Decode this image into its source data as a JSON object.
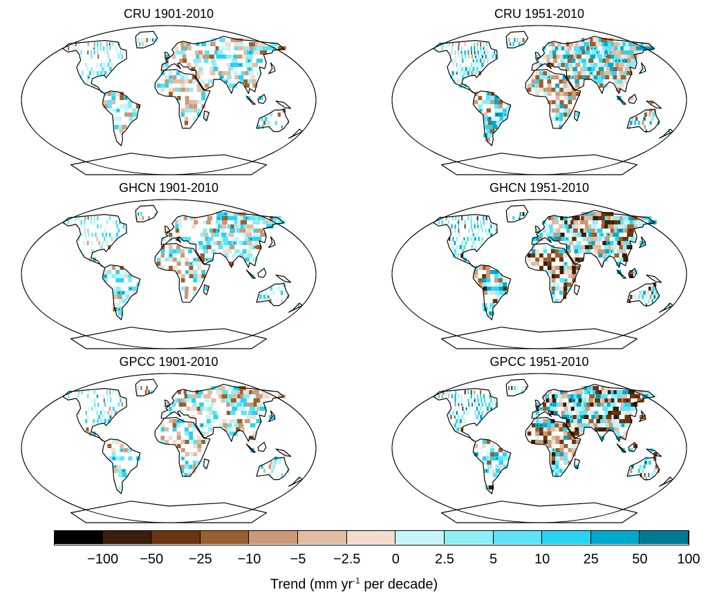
{
  "panels": [
    {
      "title": "CRU 1901-2010"
    },
    {
      "title": "CRU 1951-2010"
    },
    {
      "title": "GHCN 1901-2010"
    },
    {
      "title": "GHCN 1951-2010"
    },
    {
      "title": "GPCC 1901-2010"
    },
    {
      "title": "GPCC 1951-2010"
    }
  ],
  "legend": {
    "bins": [
      {
        "lo": -1000,
        "hi": -100,
        "color": "#000000"
      },
      {
        "lo": -100,
        "hi": -50,
        "color": "#3b1f0c"
      },
      {
        "lo": -50,
        "hi": -25,
        "color": "#6a3510"
      },
      {
        "lo": -25,
        "hi": -10,
        "color": "#99602f"
      },
      {
        "lo": -10,
        "hi": -5,
        "color": "#c99a78"
      },
      {
        "lo": -5,
        "hi": -2.5,
        "color": "#e0bda3"
      },
      {
        "lo": -2.5,
        "hi": 0,
        "color": "#f3dccd"
      },
      {
        "lo": 0,
        "hi": 2.5,
        "color": "#c4f6f9"
      },
      {
        "lo": 2.5,
        "hi": 5,
        "color": "#8eeef6"
      },
      {
        "lo": 5,
        "hi": 10,
        "color": "#5ce3f5"
      },
      {
        "lo": 10,
        "hi": 25,
        "color": "#2bd3f0"
      },
      {
        "lo": 25,
        "hi": 50,
        "color": "#00a9cb"
      },
      {
        "lo": 50,
        "hi": 100,
        "color": "#007a94"
      }
    ],
    "ticks": [
      "−100",
      "−50",
      "−25",
      "−10",
      "−5",
      "−2.5",
      "0",
      "2.5",
      "5",
      "10",
      "25",
      "50",
      "100"
    ],
    "title_main": "Trend (mm yr",
    "title_sup": "-1",
    "title_rest": " per decade)"
  }
}
